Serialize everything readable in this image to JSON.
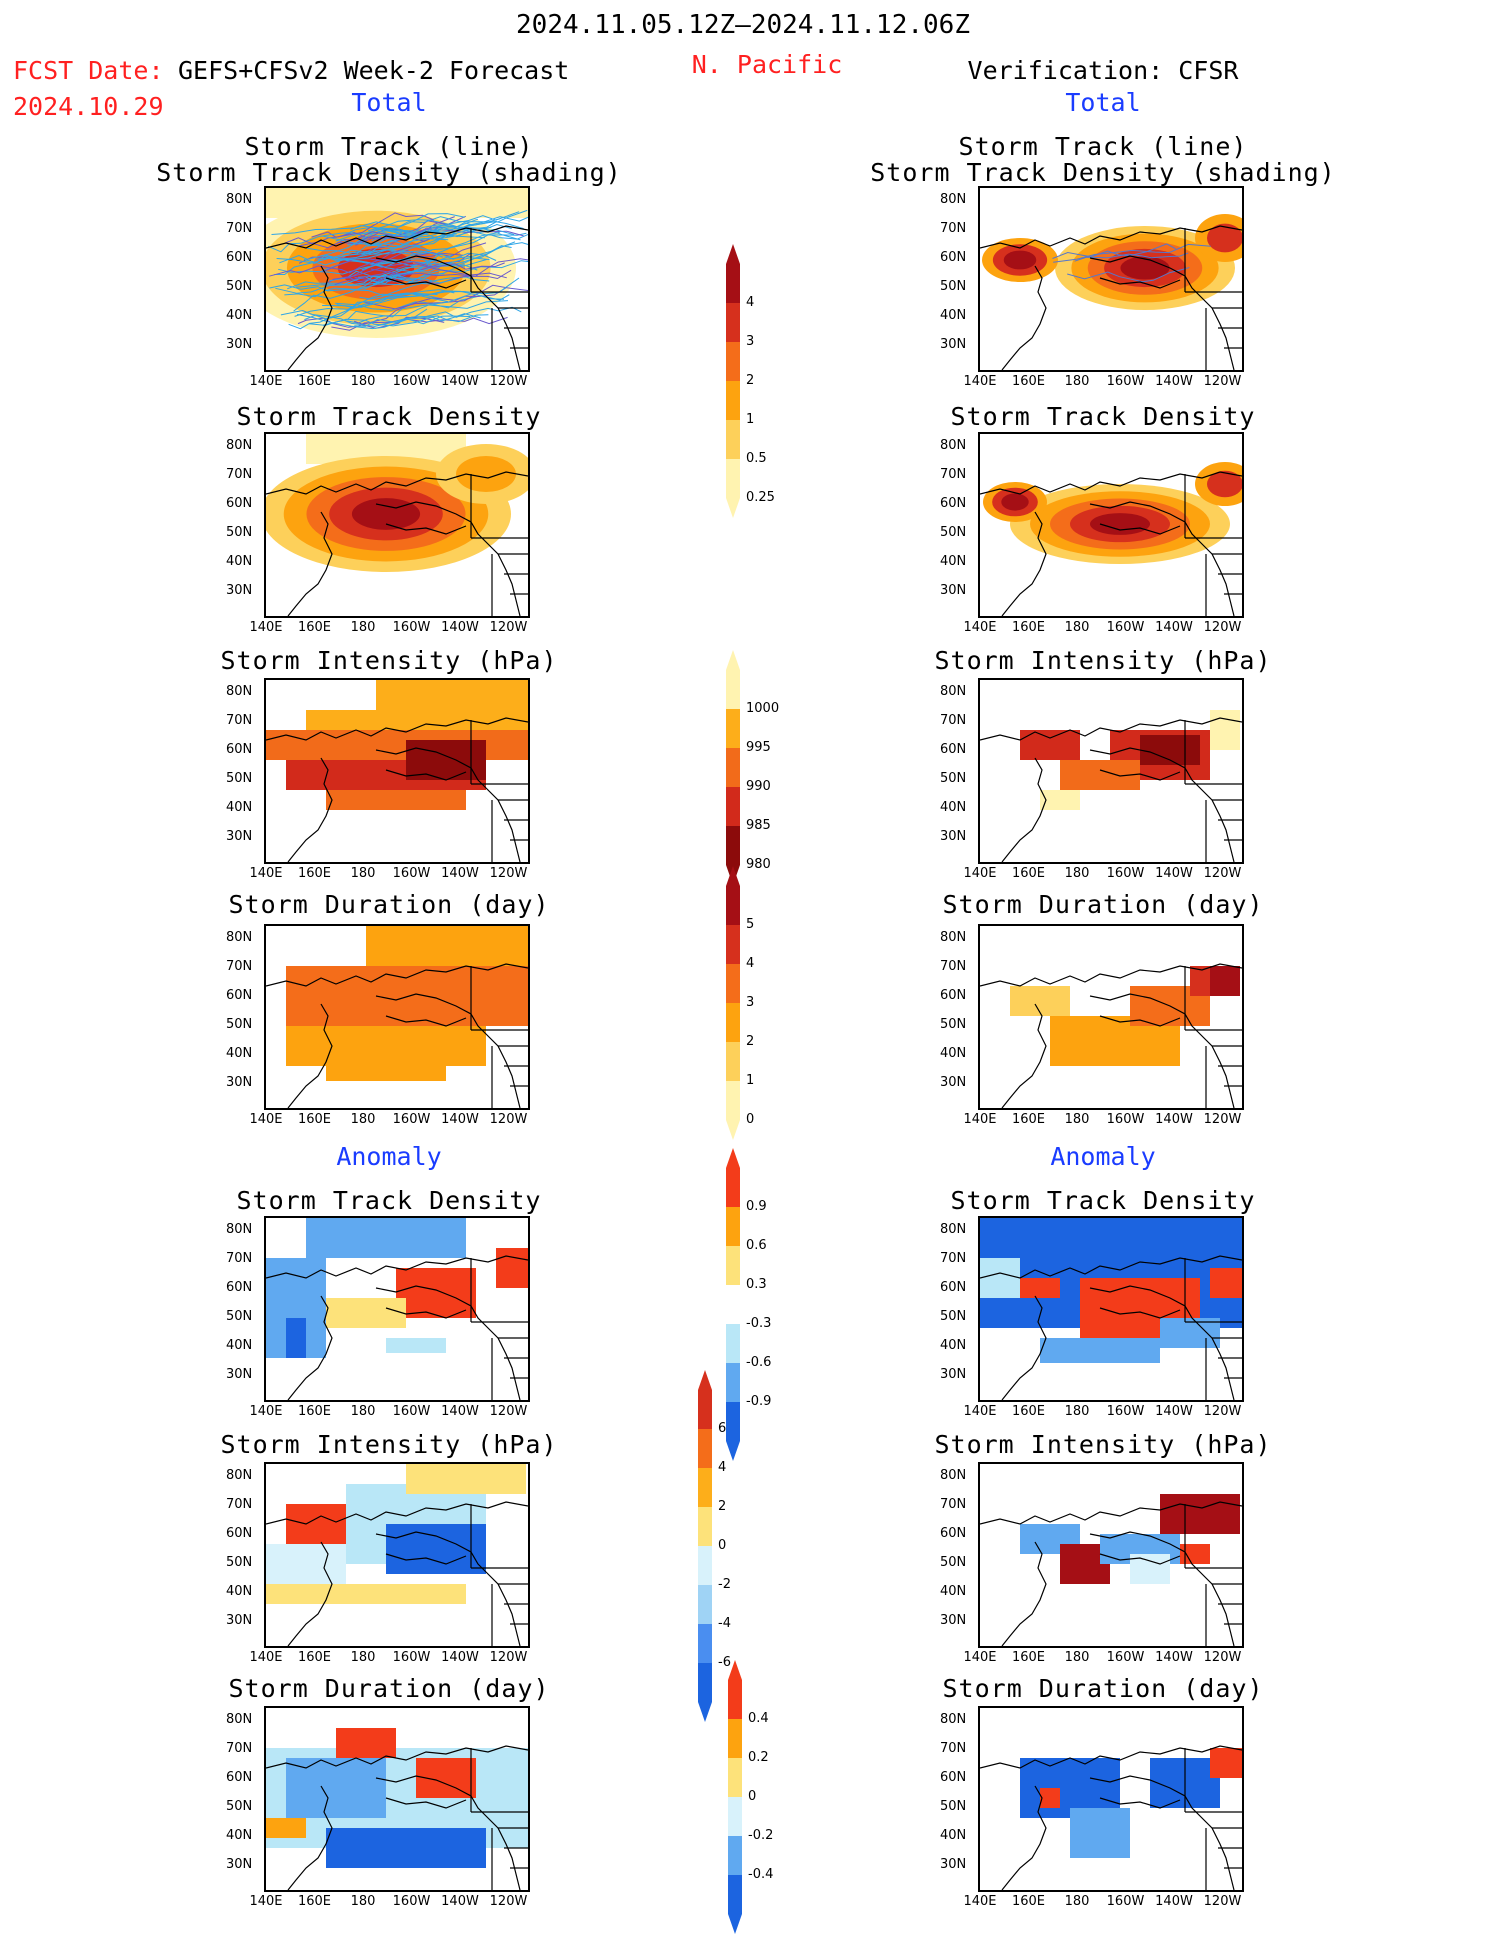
{
  "header": {
    "period": "2024.11.05.12Z–2024.11.12.06Z",
    "region": "N. Pacific",
    "fcst_label": "FCST Date:",
    "fcst_model": "GEFS+CFSv2 Week-2 Forecast",
    "fcst_date": "2024.10.29",
    "verification": "Verification: CFSR"
  },
  "sections": {
    "total": "Total",
    "anomaly": "Anomaly"
  },
  "panel_titles": {
    "track_line": "Storm Track (line)",
    "track_density_shading": "Storm Track Density (shading)",
    "track_density": "Storm Track Density",
    "intensity": "Storm Intensity (hPa)",
    "duration": "Storm Duration (day)"
  },
  "axes": {
    "lat_labels": [
      "80N",
      "70N",
      "60N",
      "50N",
      "40N",
      "30N"
    ],
    "lon_labels": [
      "140E",
      "160E",
      "180",
      "160W",
      "140W",
      "120W"
    ]
  },
  "colorbars": [
    {
      "name": "track-density-total",
      "labels": [
        "4",
        "3",
        "2",
        "1",
        "0.5",
        "0.25"
      ],
      "colors": [
        "#a50f15",
        "#d6301d",
        "#f46d1a",
        "#fda30f",
        "#fdd05a",
        "#fff3b0"
      ]
    },
    {
      "name": "intensity-total",
      "labels": [
        "1000",
        "995",
        "990",
        "985",
        "980"
      ],
      "colors": [
        "#fff3b0",
        "#fdae1a",
        "#f26b1a",
        "#d22a1b",
        "#8c0b0b"
      ]
    },
    {
      "name": "duration-total",
      "labels": [
        "5",
        "4",
        "3",
        "2",
        "1",
        "0"
      ],
      "colors": [
        "#a50f15",
        "#d6301d",
        "#f46d1a",
        "#fda30f",
        "#fdd05a",
        "#fff3b0"
      ]
    },
    {
      "name": "track-density-anomaly",
      "labels": [
        "0.9",
        "0.6",
        "0.3",
        "-0.3",
        "-0.6",
        "-0.9"
      ],
      "colors": [
        "#f33c1a",
        "#fda30f",
        "#fde27a",
        "#ffffff",
        "#b9e7f7",
        "#60a9f0",
        "#1c64e0"
      ]
    },
    {
      "name": "intensity-anomaly",
      "labels": [
        "6",
        "4",
        "2",
        "0",
        "-2",
        "-4",
        "-6"
      ],
      "colors": [
        "#d6301d",
        "#f46d1a",
        "#fdae1a",
        "#fde27a",
        "#d8f2fb",
        "#9fd3f5",
        "#4a8ef0",
        "#1c64e0"
      ]
    },
    {
      "name": "duration-anomaly",
      "labels": [
        "0.4",
        "0.2",
        "0",
        "-0.2",
        "-0.4"
      ],
      "colors": [
        "#f33c1a",
        "#fda30f",
        "#fde27a",
        "#d8f2fb",
        "#60a9f0",
        "#1c64e0"
      ]
    }
  ],
  "colors": {
    "header_red": "#ff2020",
    "section_blue": "#1a3cff",
    "track_line": "#2fa5e6",
    "track_line_dense": "#5577cc"
  }
}
